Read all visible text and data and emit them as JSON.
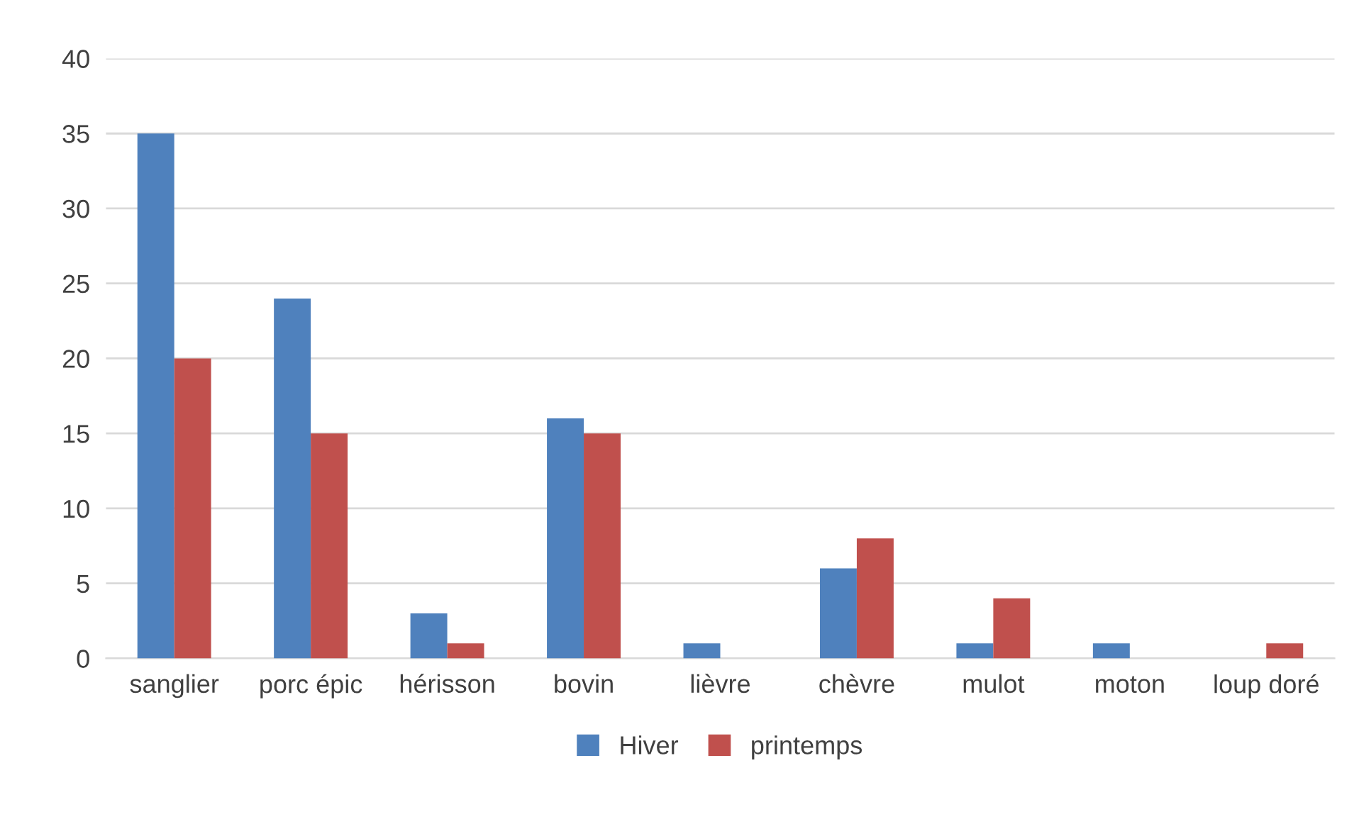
{
  "chart_data": {
    "type": "bar",
    "categories": [
      "sanglier",
      "porc épic",
      "hérisson",
      "bovin",
      "lièvre",
      "chèvre",
      "mulot",
      "moton",
      "loup doré"
    ],
    "series": [
      {
        "name": "Hiver",
        "color": "#4f81bd",
        "values": [
          35,
          24,
          3,
          16,
          1,
          6,
          1,
          1,
          0
        ]
      },
      {
        "name": "printemps",
        "color": "#c0504d",
        "values": [
          20,
          15,
          1,
          15,
          0,
          8,
          4,
          0,
          1
        ]
      }
    ],
    "ylim": [
      0,
      40
    ],
    "yticks": [
      0,
      5,
      10,
      15,
      20,
      25,
      30,
      35,
      40
    ],
    "grid": "y",
    "legend": "bottom"
  }
}
